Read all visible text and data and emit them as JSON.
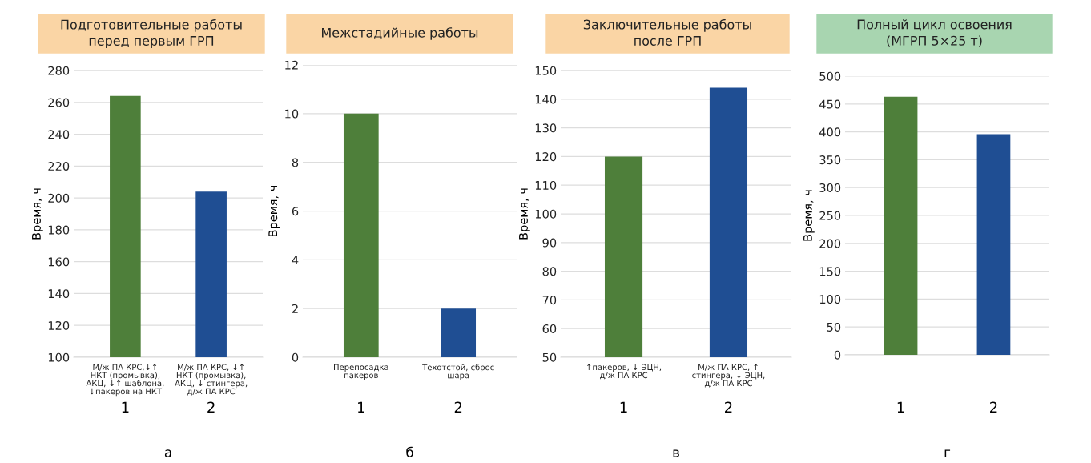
{
  "chart_data": [
    {
      "type": "bar",
      "title": "Подготовительные работы\nперед первым ГРП",
      "ylabel": "Время, ч",
      "categories": [
        "М/ж ПА КРС,↓↑\nНКТ (промывка),\nАКЦ, ↓↑ шаблона,\n↓пакеров на НКТ",
        "М/ж ПА КРС, ↓↑\nНКТ (промывка),\nАКЦ, ↓ стингера,\nд/ж ПА КРС"
      ],
      "values": [
        264,
        204
      ],
      "colors": [
        "#4e7f3a",
        "#1f4e93"
      ],
      "ylim": [
        100,
        280
      ],
      "yticks": [
        100,
        120,
        140,
        160,
        180,
        200,
        220,
        240,
        260,
        280
      ],
      "grid": "y",
      "annotations": [
        "1",
        "2",
        "а"
      ]
    },
    {
      "type": "bar",
      "title": "Межстадийные работы",
      "ylabel": "Время, ч",
      "categories": [
        "Перепосадка\nпакеров",
        "Техотстой, сброс\nшара"
      ],
      "values": [
        10,
        2
      ],
      "colors": [
        "#4e7f3a",
        "#1f4e93"
      ],
      "ylim": [
        0,
        12
      ],
      "yticks": [
        0,
        2,
        4,
        6,
        8,
        10,
        12
      ],
      "grid": "y",
      "annotations": [
        "1",
        "2",
        "б"
      ]
    },
    {
      "type": "bar",
      "title": "Заключительные работы\nпосле ГРП",
      "ylabel": "Время, ч",
      "categories": [
        "↑пакеров, ↓ ЭЦН,\nд/ж ПА КРС",
        "М/ж ПА КРС, ↑\nстингера, ↓ ЭЦН,\nд/ж ПА КРС"
      ],
      "values": [
        120,
        144
      ],
      "colors": [
        "#4e7f3a",
        "#1f4e93"
      ],
      "ylim": [
        50,
        150
      ],
      "yticks": [
        50,
        60,
        70,
        80,
        90,
        100,
        110,
        120,
        130,
        140,
        150
      ],
      "grid": "y",
      "annotations": [
        "1",
        "2",
        "в"
      ]
    },
    {
      "type": "bar",
      "title": "Полный цикл освоения\n(МГРП 5×25 т)",
      "ylabel": "Время, ч",
      "categories": [
        null,
        null
      ],
      "values": [
        463,
        396
      ],
      "colors": [
        "#4e7f3a",
        "#1f4e93"
      ],
      "ylim": [
        0,
        500
      ],
      "yticks": [
        0,
        50,
        100,
        150,
        200,
        250,
        300,
        350,
        400,
        450,
        500
      ],
      "grid": "y",
      "annotations": [
        "1",
        "2",
        "г"
      ]
    }
  ]
}
